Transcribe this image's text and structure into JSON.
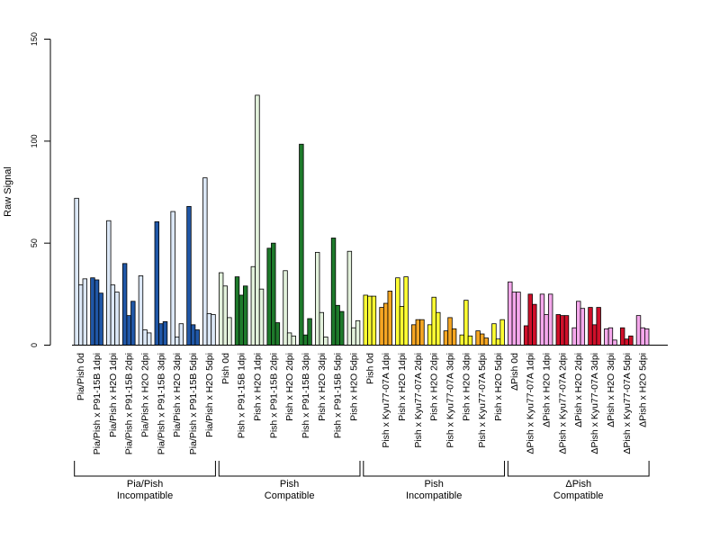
{
  "chart_data": {
    "type": "bar",
    "ylabel": "Raw Signal",
    "ylim": [
      0,
      150
    ],
    "yticks": [
      0,
      50,
      100,
      150
    ],
    "grid": false,
    "categories": [
      {
        "label": "Pia/Pish 0d",
        "values": [
          72,
          29.5,
          32.5
        ],
        "color": "#dce8f7"
      },
      {
        "label": "Pia/Pish x P91-15B 1dpi",
        "values": [
          33,
          32,
          25.5
        ],
        "color": "#2057a7"
      },
      {
        "label": "Pia/Pish x H2O 1dpi",
        "values": [
          61,
          29.5,
          26
        ],
        "color": "#dce8f7"
      },
      {
        "label": "Pia/Pish x P91-15B 2dpi",
        "values": [
          40,
          14.5,
          21.5
        ],
        "color": "#2057a7"
      },
      {
        "label": "Pia/Pish x H2O 2dpi",
        "values": [
          34,
          7.5,
          6
        ],
        "color": "#dce8f7"
      },
      {
        "label": "Pia/Pish x P91-15B 3dpi",
        "values": [
          60.5,
          10.5,
          11.5
        ],
        "color": "#2057a7"
      },
      {
        "label": "Pia/Pish x H2O 3dpi",
        "values": [
          65.5,
          4,
          10.5
        ],
        "color": "#dce8f7"
      },
      {
        "label": "Pia/Pish x P91-15B 5dpi",
        "values": [
          68,
          10,
          7.5
        ],
        "color": "#2057a7"
      },
      {
        "label": "Pia/Pish x H2O 5dpi",
        "values": [
          82,
          15.5,
          15
        ],
        "color": "#dce8f7"
      },
      {
        "label": "Pish 0d",
        "values": [
          35.5,
          29,
          13.5
        ],
        "color": "#e3f2dc"
      },
      {
        "label": "Pish x P91-15B 1dpi",
        "values": [
          33.5,
          24.5,
          29
        ],
        "color": "#1e7a2b"
      },
      {
        "label": "Pish x H2O 1dpi",
        "values": [
          38.5,
          122.5,
          27.5
        ],
        "color": "#e3f2dc"
      },
      {
        "label": "Pish x P91-15B 2dpi",
        "values": [
          47.5,
          50,
          11
        ],
        "color": "#1e7a2b"
      },
      {
        "label": "Pish x H2O 2dpi",
        "values": [
          36.5,
          6,
          4.5
        ],
        "color": "#e3f2dc"
      },
      {
        "label": "Pish x P91-15B 3dpi",
        "values": [
          98.5,
          5,
          13
        ],
        "color": "#1e7a2b"
      },
      {
        "label": "Pish x H2O 3dpi",
        "values": [
          45.5,
          16,
          4
        ],
        "color": "#e3f2dc"
      },
      {
        "label": "Pish x P91-15B 5dpi",
        "values": [
          52.5,
          19.5,
          16.5
        ],
        "color": "#1e7a2b"
      },
      {
        "label": "Pish x H2O 5dpi",
        "values": [
          46,
          8.5,
          12
        ],
        "color": "#e3f2dc"
      },
      {
        "label": "Pish 0d",
        "values": [
          24.5,
          24,
          24
        ],
        "color": "#ffff33"
      },
      {
        "label": "Pish x Kyu77-07A 1dpi",
        "values": [
          18.5,
          20.5,
          26.5
        ],
        "color": "#f5a623"
      },
      {
        "label": "Pish x H2O 1dpi",
        "values": [
          33,
          19,
          33.5
        ],
        "color": "#ffff33"
      },
      {
        "label": "Pish x Kyu77-07A 2dpi",
        "values": [
          10,
          12.5,
          12.5
        ],
        "color": "#f5a623"
      },
      {
        "label": "Pish x H2O 2dpi",
        "values": [
          10,
          23.5,
          16
        ],
        "color": "#ffff33"
      },
      {
        "label": "Pish x Kyu77-07A 3dpi",
        "values": [
          7,
          13.5,
          8
        ],
        "color": "#f5a623"
      },
      {
        "label": "Pish x H2O 3dpi",
        "values": [
          5,
          22,
          4.5
        ],
        "color": "#ffff33"
      },
      {
        "label": "Pish x Kyu77-07A 5dpi",
        "values": [
          7,
          5.5,
          3.5
        ],
        "color": "#f5a623"
      },
      {
        "label": "Pish x H2O 5dpi",
        "values": [
          10.5,
          3,
          12.5
        ],
        "color": "#ffff33"
      },
      {
        "label": "ΔPish 0d",
        "values": [
          31,
          26,
          26
        ],
        "color": "#f5a8ec"
      },
      {
        "label": "ΔPish x Kyu77-07A 1dpi",
        "values": [
          9.5,
          25,
          20
        ],
        "color": "#d0102a"
      },
      {
        "label": "ΔPish x H2O 1dpi",
        "values": [
          25,
          15,
          25
        ],
        "color": "#f5a8ec"
      },
      {
        "label": "ΔPish x Kyu77-07A 2dpi",
        "values": [
          15,
          14.5,
          14.5
        ],
        "color": "#d0102a"
      },
      {
        "label": "ΔPish x H2O 2dpi",
        "values": [
          8.5,
          21.5,
          18
        ],
        "color": "#f5a8ec"
      },
      {
        "label": "ΔPish x Kyu77-07A 3dpi",
        "values": [
          18.5,
          10,
          18.5
        ],
        "color": "#d0102a"
      },
      {
        "label": "ΔPish x H2O 3dpi",
        "values": [
          8,
          8.5,
          2.5
        ],
        "color": "#f5a8ec"
      },
      {
        "label": "ΔPish x Kyu77-07A 5dpi",
        "values": [
          8.5,
          3,
          4.5
        ],
        "color": "#d0102a"
      },
      {
        "label": "ΔPish x H2O 5dpi",
        "values": [
          14.5,
          8.5,
          8
        ],
        "color": "#f5a8ec"
      }
    ],
    "groups": [
      {
        "line1": "Pia/Pish",
        "line2": "Incompatible",
        "first": 0,
        "last": 8
      },
      {
        "line1": "Pish",
        "line2": "Compatible",
        "first": 9,
        "last": 17
      },
      {
        "line1": "Pish",
        "line2": "Incompatible",
        "first": 18,
        "last": 26
      },
      {
        "line1": "ΔPish",
        "line2": "Compatible",
        "first": 27,
        "last": 35
      }
    ]
  }
}
